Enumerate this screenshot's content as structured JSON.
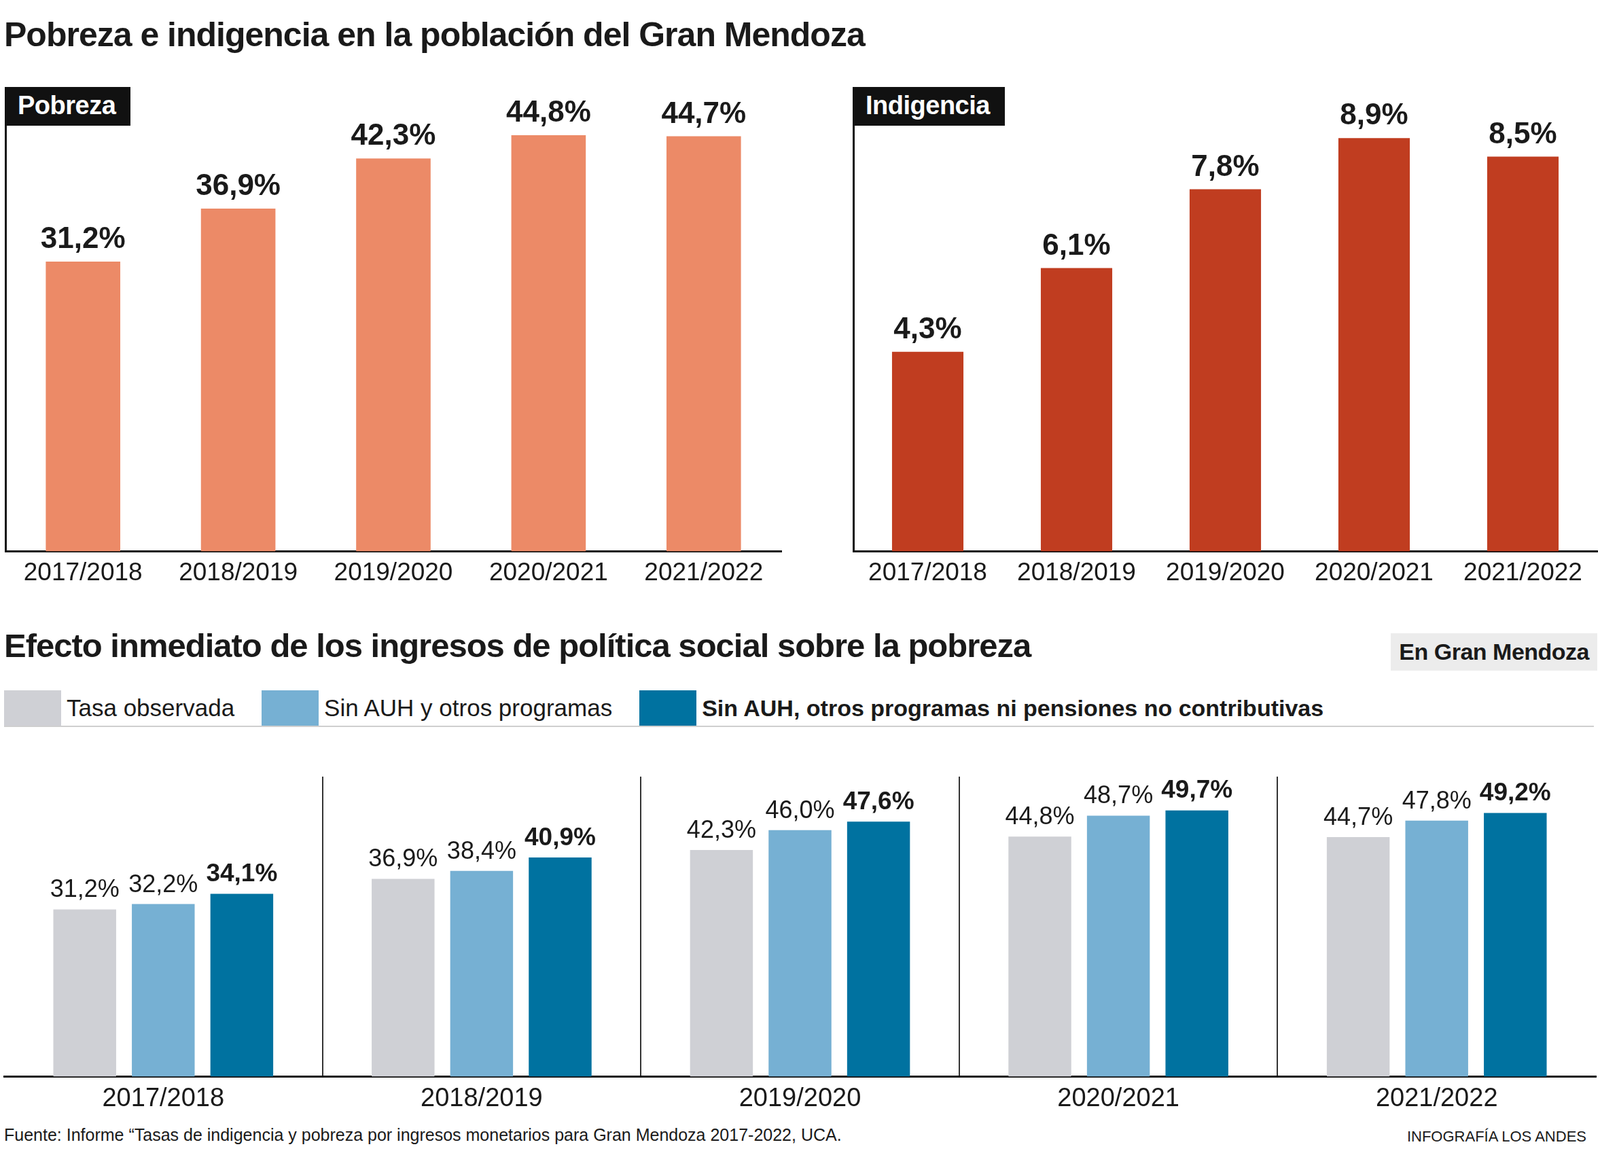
{
  "page": {
    "title": "Pobreza e indigencia en la población del Gran Mendoza",
    "source": "Fuente: Informe “Tasas de indigencia y pobreza por ingresos monetarios para Gran Mendoza 2017-2022, UCA.",
    "credit": "INFOGRAFÍA LOS ANDES"
  },
  "chart_data": [
    {
      "type": "bar",
      "title": "Pobreza",
      "categories": [
        "2017/2018",
        "2018/2019",
        "2019/2020",
        "2020/2021",
        "2021/2022"
      ],
      "values": [
        31.2,
        36.9,
        42.3,
        44.8,
        44.7
      ],
      "value_labels": [
        "31,2%",
        "36,9%",
        "42,3%",
        "44,8%",
        "44,7%"
      ],
      "color": "#ec8a67",
      "ylim": [
        0,
        50
      ],
      "grid": false,
      "tick_labels": "x",
      "data_labels": true
    },
    {
      "type": "bar",
      "title": "Indigencia",
      "categories": [
        "2017/2018",
        "2018/2019",
        "2019/2020",
        "2020/2021",
        "2021/2022"
      ],
      "values": [
        4.3,
        6.1,
        7.8,
        8.9,
        8.5
      ],
      "value_labels": [
        "4,3%",
        "6,1%",
        "7,8%",
        "8,9%",
        "8,5%"
      ],
      "color": "#c03d20",
      "ylim": [
        0,
        10
      ],
      "grid": false,
      "tick_labels": "x",
      "data_labels": true
    },
    {
      "type": "bar",
      "title": "Efecto inmediato de los ingresos de política social sobre la pobreza",
      "subtitle": "En Gran Mendoza",
      "categories": [
        "2017/2018",
        "2018/2019",
        "2019/2020",
        "2020/2021",
        "2021/2022"
      ],
      "series": [
        {
          "name": "Tasa observada",
          "color": "#cfd0d5",
          "values": [
            31.2,
            36.9,
            42.3,
            44.8,
            44.7
          ],
          "value_labels": [
            "31,2%",
            "36,9%",
            "42,3%",
            "44,8%",
            "44,7%"
          ]
        },
        {
          "name": "Sin AUH y otros programas",
          "color": "#76b0d3",
          "values": [
            32.2,
            38.4,
            46.0,
            48.7,
            47.8
          ],
          "value_labels": [
            "32,2%",
            "38,4%",
            "46,0%",
            "48,7%",
            "47,8%"
          ]
        },
        {
          "name": "Sin AUH, otros programas ni pensiones no contributivas",
          "color": "#0072a0",
          "values": [
            34.1,
            40.9,
            47.6,
            49.7,
            49.2
          ],
          "value_labels": [
            "34,1%",
            "40,9%",
            "47,6%",
            "49,7%",
            "49,2%"
          ]
        }
      ],
      "ylim": [
        0,
        56
      ],
      "grid": false,
      "tick_labels": "x",
      "data_labels": true,
      "legend": "top"
    }
  ]
}
